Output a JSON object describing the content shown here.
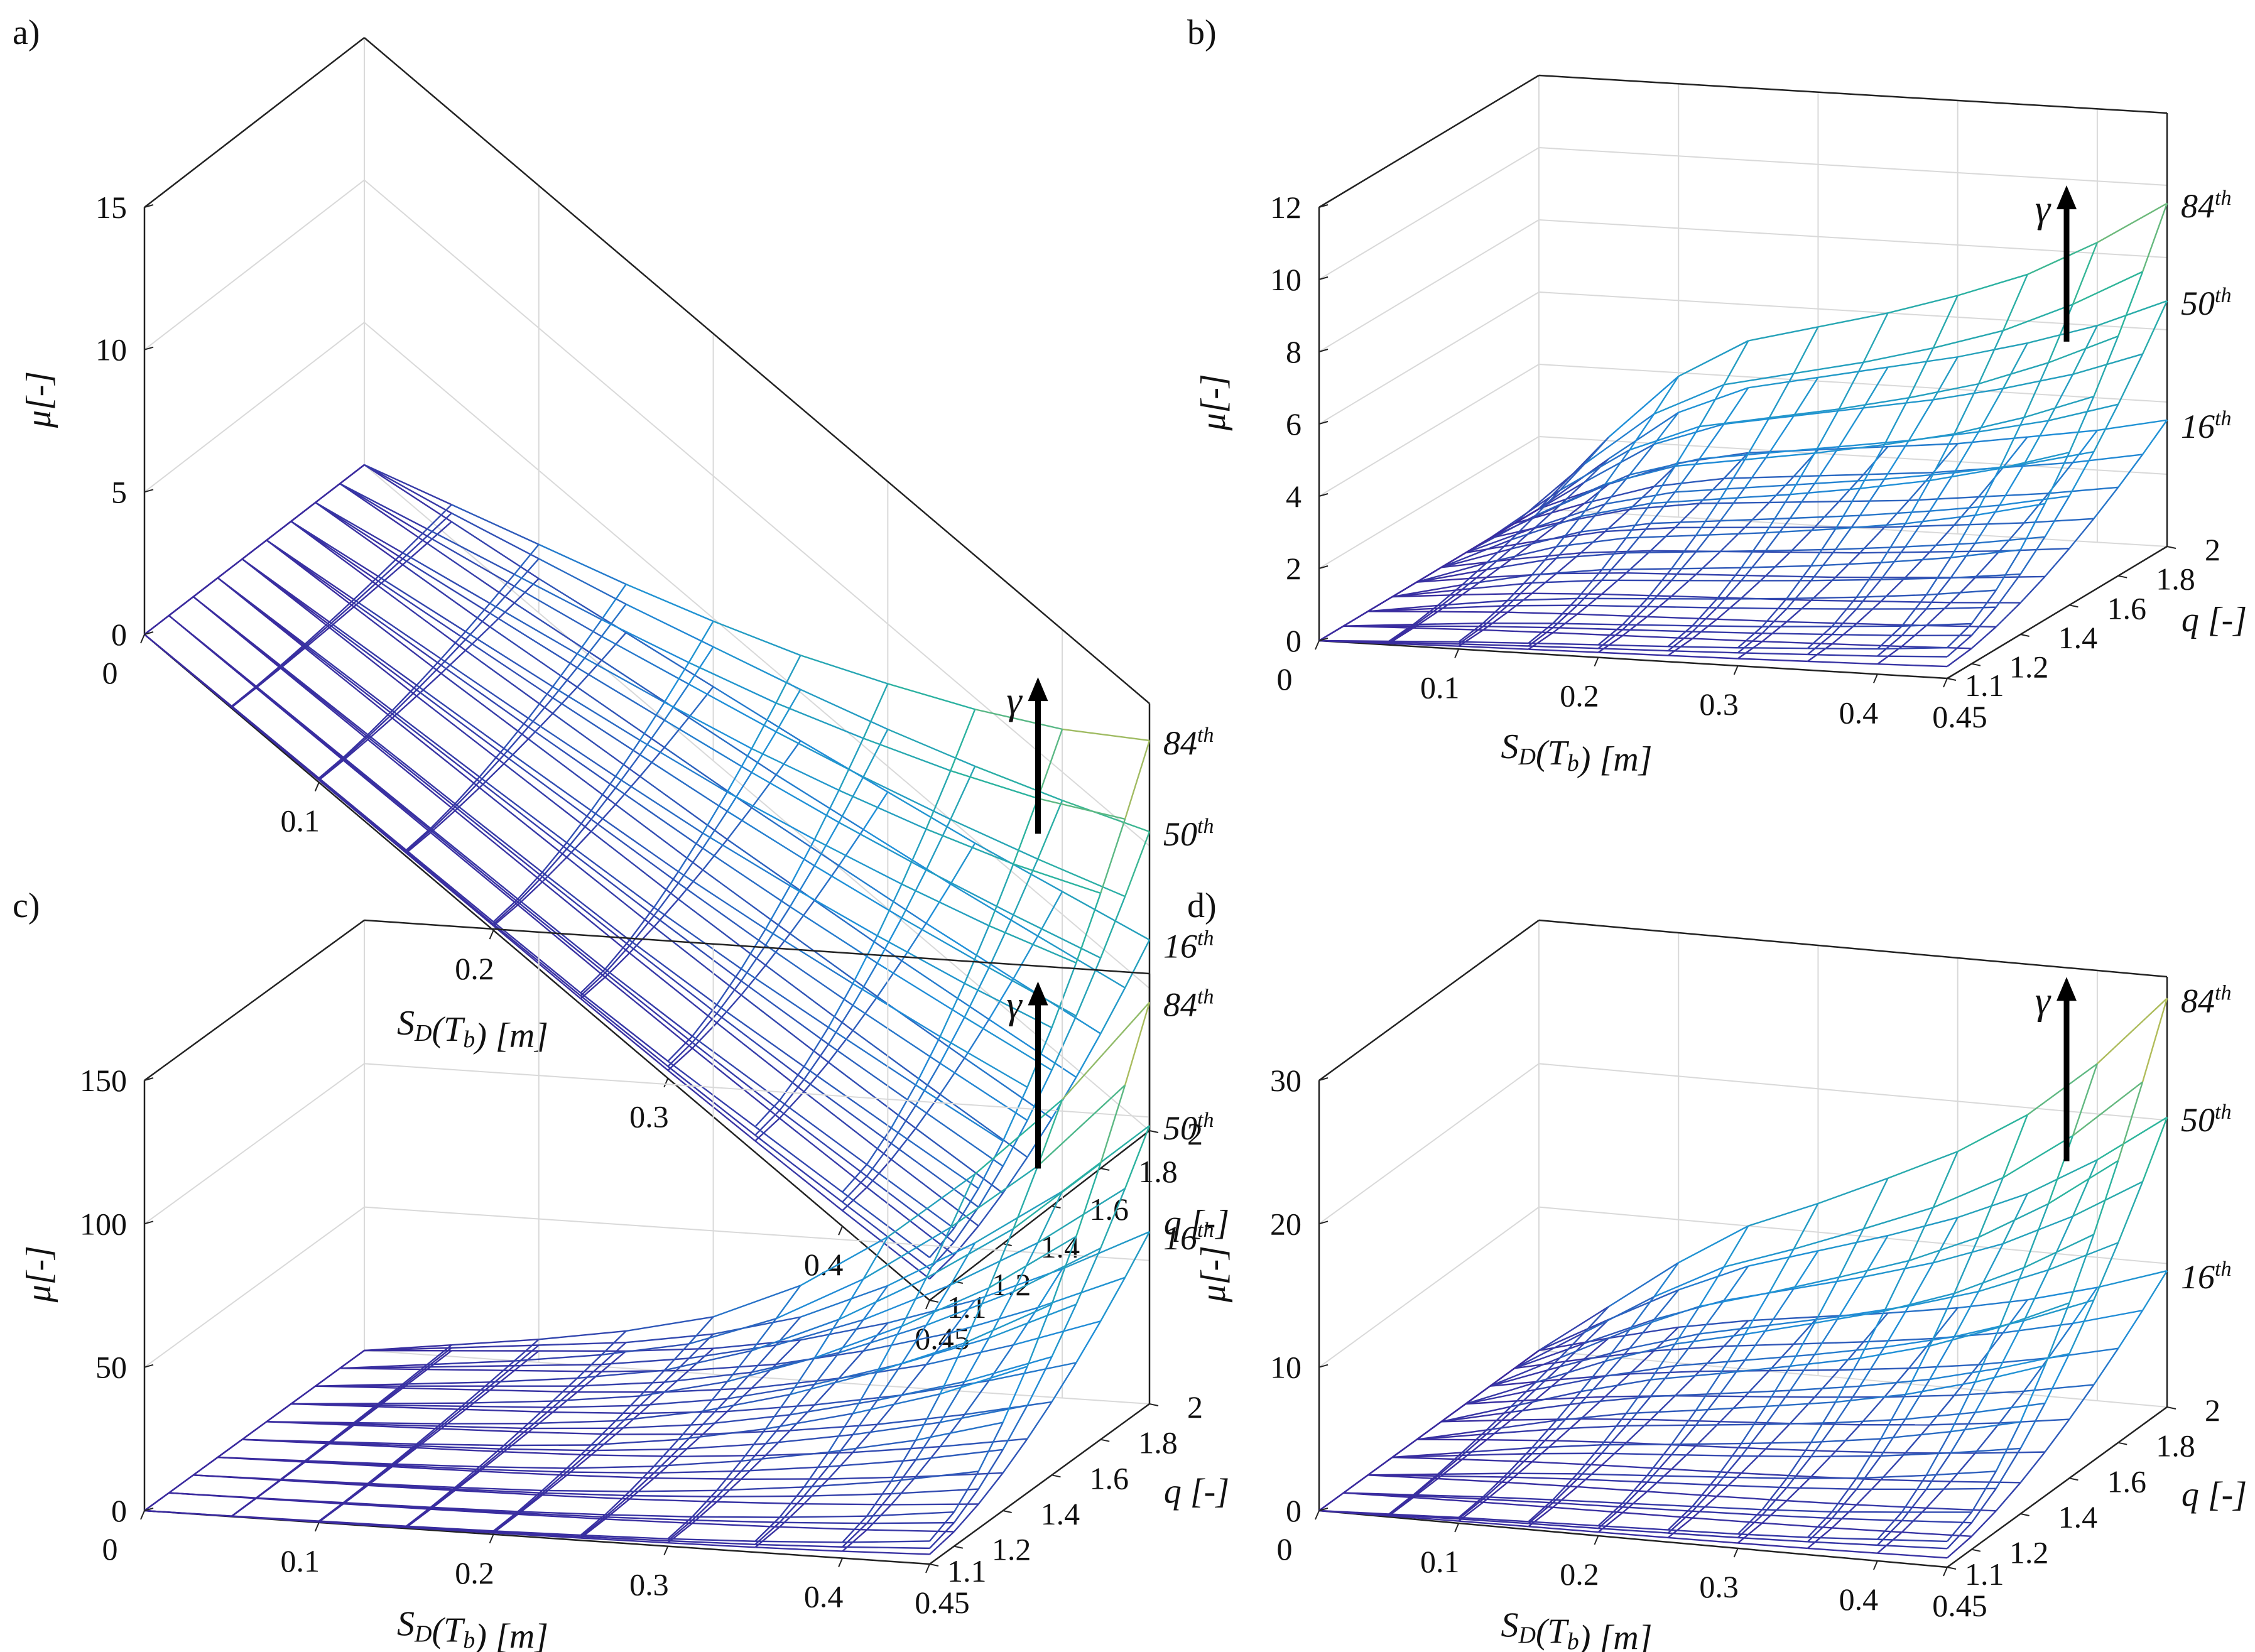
{
  "colors": {
    "mesh_low": "#3a2a9e",
    "mesh_mid": "#1f8fd8",
    "mesh_teal": "#2cb59a",
    "mesh_high": "#f3c03a",
    "box": "#222222",
    "grid": "#d9d9d9",
    "arrow": "#000000"
  },
  "chart_data": [
    {
      "panel": "a)",
      "type": "surface",
      "xlabel": "S_D(T_b) [m]",
      "xlabel_main": "S",
      "xlabel_sub1": "D",
      "xlabel_mid": "(T",
      "xlabel_sub2": "b",
      "xlabel_tail": ") [m]",
      "ylabel": "q [-]",
      "zlabel": "μ[-]",
      "xlim": [
        0,
        0.45
      ],
      "ylim": [
        1.1,
        2.0
      ],
      "zlim": [
        0,
        15
      ],
      "xticks": [
        "0",
        "0.1",
        "0.2",
        "0.3",
        "0.4",
        "0.45"
      ],
      "yticks": [
        "1.1",
        "1.2",
        "1.4",
        "1.6",
        "1.8",
        "2"
      ],
      "zticks": [
        "0",
        "5",
        "10",
        "15"
      ],
      "x_values": [
        0,
        0.05,
        0.1,
        0.15,
        0.2,
        0.25,
        0.3,
        0.35,
        0.4,
        0.45
      ],
      "q_values": [
        1.1,
        1.2,
        1.3,
        1.4,
        1.5,
        1.6,
        1.7,
        1.8,
        1.9,
        2.0
      ],
      "percentile_labels": [
        "84",
        "50",
        "16"
      ],
      "percentile_sup": "th",
      "gamma": "γ",
      "series": [
        {
          "name": "84th",
          "mu_at_q2": [
            0,
            1.2,
            2.4,
            3.6,
            4.9,
            6.3,
            7.9,
            9.6,
            11.5,
            13.7
          ],
          "mu_at_q1_1": [
            0,
            0.08,
            0.15,
            0.22,
            0.3,
            0.4,
            0.6,
            0.9,
            1.2,
            1.5
          ]
        },
        {
          "name": "50th",
          "mu_at_q2": [
            0,
            0.9,
            1.9,
            2.9,
            4.0,
            5.1,
            6.3,
            7.6,
            9.0,
            10.5
          ],
          "mu_at_q1_1": [
            0,
            0.06,
            0.11,
            0.17,
            0.22,
            0.3,
            0.42,
            0.6,
            0.85,
            1.1
          ]
        },
        {
          "name": "16th",
          "mu_at_q2": [
            0,
            0.6,
            1.2,
            1.9,
            2.6,
            3.3,
            4.1,
            4.9,
            5.8,
            6.7
          ],
          "mu_at_q1_1": [
            0,
            0.04,
            0.08,
            0.12,
            0.16,
            0.2,
            0.28,
            0.4,
            0.55,
            0.75
          ]
        }
      ]
    },
    {
      "panel": "b)",
      "type": "surface",
      "xlabel": "S_D(T_b) [m]",
      "xlabel_main": "S",
      "xlabel_sub1": "D",
      "xlabel_mid": "(T",
      "xlabel_sub2": "b",
      "xlabel_tail": ") [m]",
      "ylabel": "q [-]",
      "zlabel": "μ[-]",
      "xlim": [
        0,
        0.45
      ],
      "ylim": [
        1.1,
        2.0
      ],
      "zlim": [
        0,
        12
      ],
      "xticks": [
        "0",
        "0.1",
        "0.2",
        "0.3",
        "0.4",
        "0.45"
      ],
      "yticks": [
        "1.1",
        "1.2",
        "1.4",
        "1.6",
        "1.8",
        "2"
      ],
      "zticks": [
        "0",
        "2",
        "4",
        "6",
        "8",
        "10",
        "12"
      ],
      "x_values": [
        0,
        0.05,
        0.1,
        0.15,
        0.2,
        0.25,
        0.3,
        0.35,
        0.4,
        0.45
      ],
      "q_values": [
        1.1,
        1.2,
        1.3,
        1.4,
        1.5,
        1.6,
        1.7,
        1.8,
        1.9,
        2.0
      ],
      "percentile_labels": [
        "84",
        "50",
        "16"
      ],
      "percentile_sup": "th",
      "gamma": "γ",
      "series": [
        {
          "name": "84th",
          "mu_at_q2": [
            0,
            2.1,
            3.9,
            5.0,
            5.5,
            6.0,
            6.6,
            7.3,
            8.3,
            9.5
          ],
          "mu_at_q1_1": [
            0,
            0.1,
            0.2,
            0.28,
            0.35,
            0.42,
            0.5,
            0.6,
            0.7,
            0.85
          ]
        },
        {
          "name": "50th",
          "mu_at_q2": [
            0,
            1.5,
            2.9,
            3.7,
            4.1,
            4.5,
            4.9,
            5.4,
            6.0,
            6.8
          ],
          "mu_at_q1_1": [
            0,
            0.07,
            0.14,
            0.2,
            0.25,
            0.3,
            0.36,
            0.43,
            0.5,
            0.6
          ]
        },
        {
          "name": "16th",
          "mu_at_q2": [
            0,
            0.8,
            1.5,
            1.9,
            2.1,
            2.3,
            2.5,
            2.8,
            3.1,
            3.5
          ],
          "mu_at_q1_1": [
            0,
            0.04,
            0.08,
            0.11,
            0.14,
            0.17,
            0.2,
            0.24,
            0.28,
            0.33
          ]
        }
      ]
    },
    {
      "panel": "c)",
      "type": "surface",
      "xlabel": "S_D(T_b) [m]",
      "xlabel_main": "S",
      "xlabel_sub1": "D",
      "xlabel_mid": "(T",
      "xlabel_sub2": "b",
      "xlabel_tail": ") [m]",
      "ylabel": "q [-]",
      "zlabel": "μ[-]",
      "xlim": [
        0,
        0.45
      ],
      "ylim": [
        1.1,
        2.0
      ],
      "zlim": [
        0,
        150
      ],
      "xticks": [
        "0",
        "0.1",
        "0.2",
        "0.3",
        "0.4",
        "0.45"
      ],
      "yticks": [
        "1.1",
        "1.2",
        "1.4",
        "1.6",
        "1.8",
        "2"
      ],
      "zticks": [
        "0",
        "50",
        "100",
        "150"
      ],
      "x_values": [
        0,
        0.05,
        0.1,
        0.15,
        0.2,
        0.25,
        0.3,
        0.35,
        0.4,
        0.45
      ],
      "q_values": [
        1.1,
        1.2,
        1.3,
        1.4,
        1.5,
        1.6,
        1.7,
        1.8,
        1.9,
        2.0
      ],
      "percentile_labels": [
        "84",
        "50",
        "16"
      ],
      "percentile_sup": "th",
      "gamma": "γ",
      "series": [
        {
          "name": "84th",
          "mu_at_q2": [
            0,
            4,
            8,
            13,
            20,
            33,
            52,
            76,
            104,
            140
          ],
          "mu_at_q1_1": [
            0,
            0.2,
            0.5,
            0.8,
            1.2,
            1.8,
            2.6,
            3.8,
            5.5,
            8
          ]
        },
        {
          "name": "50th",
          "mu_at_q2": [
            0,
            3,
            6,
            9,
            14,
            22,
            35,
            52,
            72,
            97
          ],
          "mu_at_q1_1": [
            0,
            0.15,
            0.35,
            0.55,
            0.85,
            1.3,
            1.9,
            2.7,
            3.9,
            5.5
          ]
        },
        {
          "name": "16th",
          "mu_at_q2": [
            0,
            2,
            4,
            6,
            9,
            14,
            22,
            32,
            45,
            60
          ],
          "mu_at_q1_1": [
            0,
            0.1,
            0.2,
            0.35,
            0.55,
            0.8,
            1.2,
            1.7,
            2.4,
            3.4
          ]
        }
      ]
    },
    {
      "panel": "d)",
      "type": "surface",
      "xlabel": "S_D(T_b) [m]",
      "xlabel_main": "S",
      "xlabel_sub1": "D",
      "xlabel_mid": "(T",
      "xlabel_sub2": "b",
      "xlabel_tail": ") [m]",
      "ylabel": "q [-]",
      "zlabel": "μ[-]",
      "xlim": [
        0,
        0.45
      ],
      "ylim": [
        1.1,
        2.0
      ],
      "zlim": [
        0,
        30
      ],
      "xticks": [
        "0",
        "0.1",
        "0.2",
        "0.3",
        "0.4",
        "0.45"
      ],
      "yticks": [
        "1.1",
        "1.2",
        "1.4",
        "1.6",
        "1.8",
        "2"
      ],
      "zticks": [
        "0",
        "10",
        "20",
        "30"
      ],
      "x_values": [
        0,
        0.05,
        0.1,
        0.15,
        0.2,
        0.25,
        0.3,
        0.35,
        0.4,
        0.45
      ],
      "q_values": [
        1.1,
        1.2,
        1.3,
        1.4,
        1.5,
        1.6,
        1.7,
        1.8,
        1.9,
        2.0
      ],
      "percentile_labels": [
        "84",
        "50",
        "16"
      ],
      "percentile_sup": "th",
      "gamma": "γ",
      "series": [
        {
          "name": "84th",
          "mu_at_q2": [
            0,
            3.5,
            7,
            10,
            12,
            14.2,
            16.5,
            19.5,
            23.5,
            28.5
          ],
          "mu_at_q1_1": [
            0,
            0.2,
            0.4,
            0.55,
            0.7,
            0.85,
            1.0,
            1.2,
            1.5,
            1.8
          ]
        },
        {
          "name": "50th",
          "mu_at_q2": [
            0,
            2.6,
            5.1,
            7.2,
            8.7,
            10.2,
            11.9,
            14.0,
            16.8,
            20.2
          ],
          "mu_at_q1_1": [
            0,
            0.15,
            0.3,
            0.42,
            0.52,
            0.63,
            0.75,
            0.9,
            1.1,
            1.3
          ]
        },
        {
          "name": "16th",
          "mu_at_q2": [
            0,
            1.3,
            2.5,
            3.4,
            4.1,
            4.8,
            5.6,
            6.6,
            7.9,
            9.5
          ],
          "mu_at_q1_1": [
            0,
            0.08,
            0.15,
            0.21,
            0.26,
            0.31,
            0.37,
            0.44,
            0.54,
            0.65
          ]
        }
      ]
    }
  ]
}
